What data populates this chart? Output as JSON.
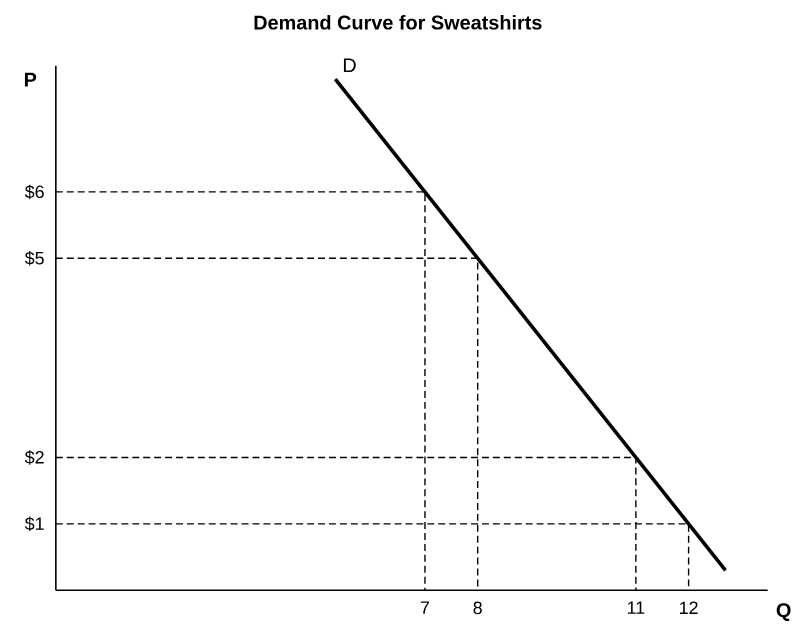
{
  "chart_data": {
    "type": "line",
    "title": "Demand Curve for Sweatshirts",
    "xlabel": "Q",
    "ylabel": "P",
    "xlim": [
      0,
      13.5
    ],
    "ylim": [
      0,
      7.9
    ],
    "xticks": [
      7,
      8,
      11,
      12
    ],
    "yticks": [
      {
        "value": 1,
        "label": "$1"
      },
      {
        "value": 2,
        "label": "$2"
      },
      {
        "value": 5,
        "label": "$5"
      },
      {
        "value": 6,
        "label": "$6"
      }
    ],
    "annotations": [
      {
        "text": "D",
        "x": 5.3,
        "y": 7.7
      }
    ],
    "series": [
      {
        "color": "#000000",
        "line_style": "solid",
        "x": [
          5.3,
          12.7
        ],
        "values": [
          7.7,
          0.3
        ]
      },
      {
        "color": "#000000",
        "line_style": "dashed",
        "x": [
          0,
          7,
          7
        ],
        "values": [
          6,
          6,
          0
        ]
      },
      {
        "color": "#000000",
        "line_style": "dashed",
        "x": [
          0,
          8,
          8
        ],
        "values": [
          5,
          5,
          0
        ]
      },
      {
        "color": "#000000",
        "line_style": "dashed",
        "x": [
          0,
          11,
          11
        ],
        "values": [
          2,
          2,
          0
        ]
      },
      {
        "color": "#000000",
        "line_style": "dashed",
        "x": [
          0,
          12,
          12
        ],
        "values": [
          1,
          1,
          0
        ]
      }
    ]
  }
}
